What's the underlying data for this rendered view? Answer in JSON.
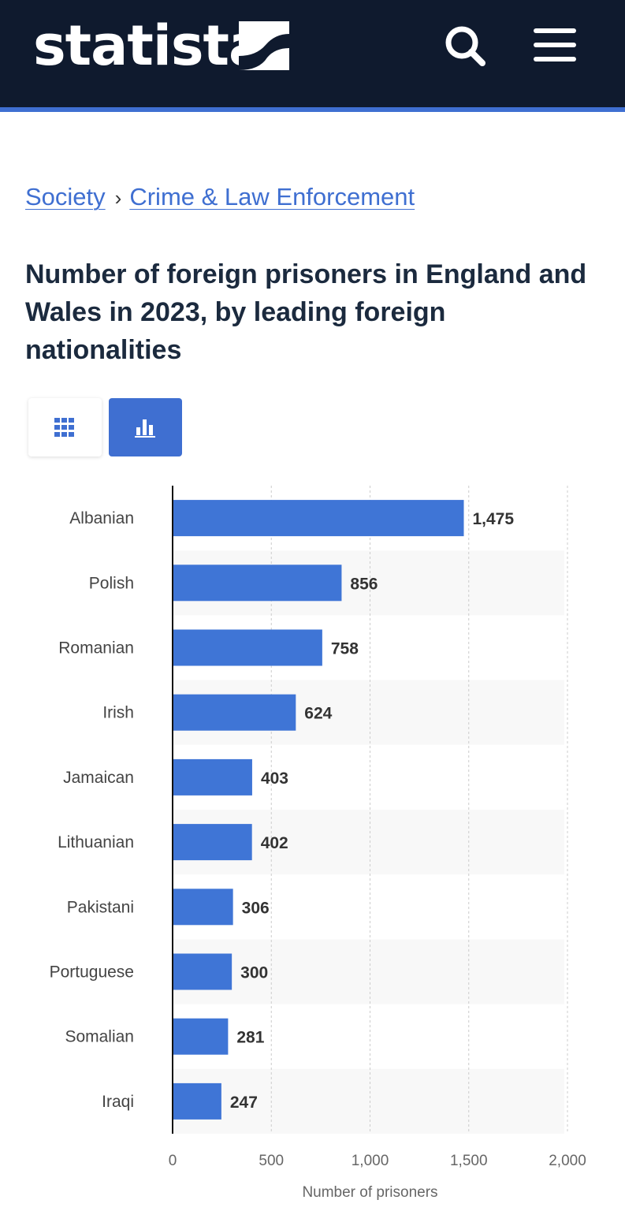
{
  "header": {
    "logo_text": "statista",
    "bg_color": "#0f1a2e",
    "accent_color": "#3f6fd1",
    "icons": [
      "statista-logo-mark",
      "search-icon",
      "menu-icon"
    ]
  },
  "breadcrumb": {
    "items": [
      "Society",
      "Crime & Law Enforcement"
    ],
    "separator": "›"
  },
  "title": "Number of foreign prisoners in England and Wales in 2023, by leading foreign nationalities",
  "view_toggle": {
    "options": [
      "table-view",
      "chart-view"
    ],
    "active": "chart-view"
  },
  "chart_data": {
    "type": "bar",
    "orientation": "horizontal",
    "categories": [
      "Albanian",
      "Polish",
      "Romanian",
      "Irish",
      "Jamaican",
      "Lithuanian",
      "Pakistani",
      "Portuguese",
      "Somalian",
      "Iraqi"
    ],
    "values": [
      1475,
      856,
      758,
      624,
      403,
      402,
      306,
      300,
      281,
      247
    ],
    "value_labels": [
      "1,475",
      "856",
      "758",
      "624",
      "403",
      "402",
      "306",
      "300",
      "281",
      "247"
    ],
    "xlabel": "Number of prisoners",
    "ylabel": "",
    "xlim": [
      0,
      2000
    ],
    "xticks": [
      0,
      500,
      1000,
      1500,
      2000
    ],
    "xtick_labels": [
      "0",
      "500",
      "1,000",
      "1,500",
      "2,000"
    ],
    "bar_color": "#3f75d6",
    "grid": true
  }
}
